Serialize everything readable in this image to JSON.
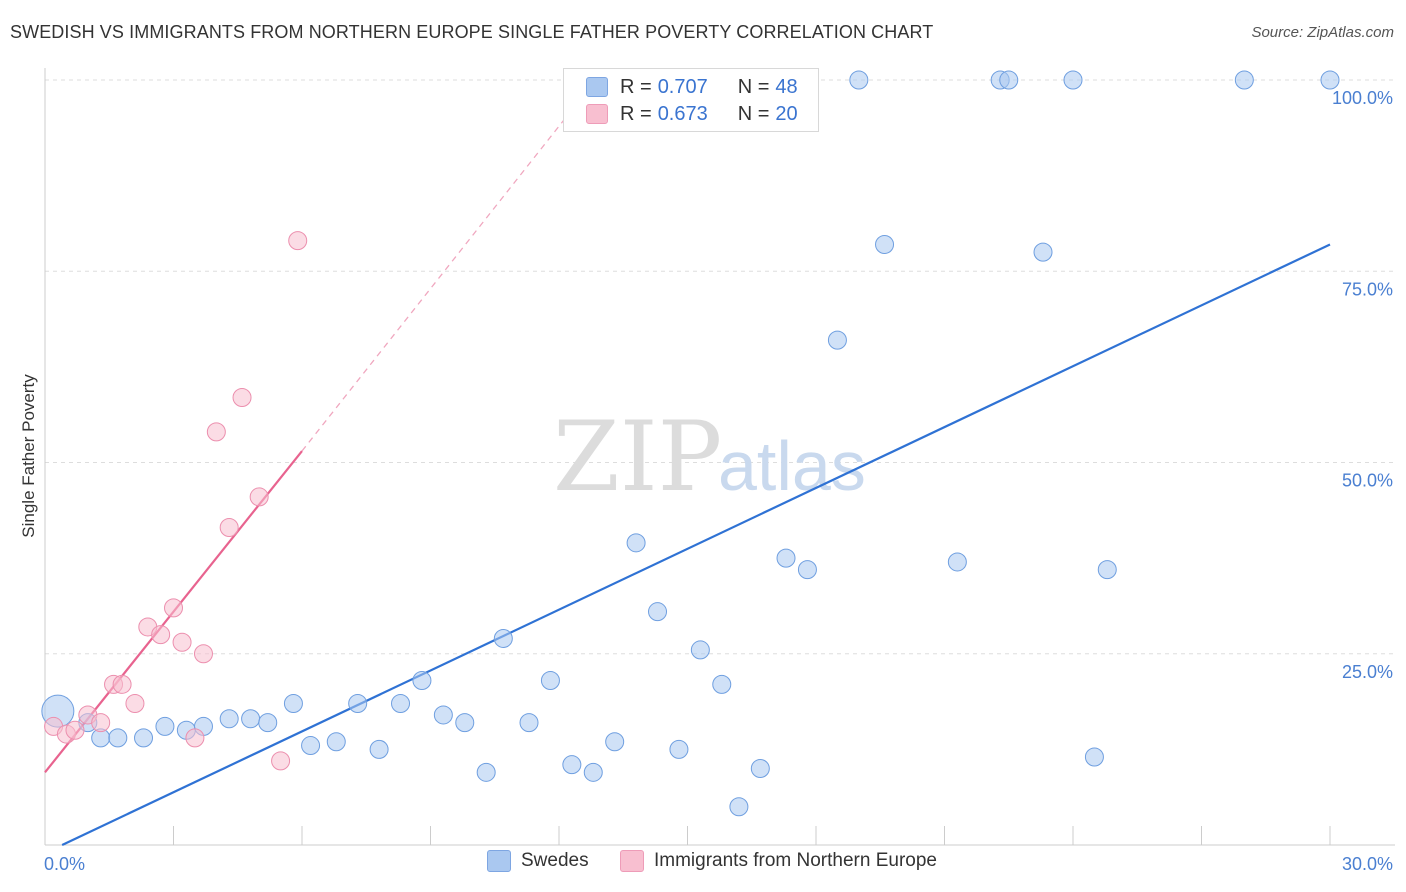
{
  "title": "SWEDISH VS IMMIGRANTS FROM NORTHERN EUROPE SINGLE FATHER POVERTY CORRELATION CHART",
  "source": "Source: ZipAtlas.com",
  "watermark": {
    "zip": "ZIP",
    "atlas": "atlas"
  },
  "legend_top": [
    {
      "r_label": "R = ",
      "r_value": "0.707",
      "n_label": "N = ",
      "n_value": "48",
      "color": "#aac8f0"
    },
    {
      "r_label": "R = ",
      "r_value": "0.673",
      "n_label": "N = ",
      "n_value": "20",
      "color": "#f8bfd0"
    }
  ],
  "chart_data": {
    "type": "scatter",
    "title": "SWEDISH VS IMMIGRANTS FROM NORTHERN EUROPE SINGLE FATHER POVERTY CORRELATION CHART",
    "xlabel": "",
    "ylabel": "Single Father Poverty",
    "xlim": [
      0,
      30
    ],
    "ylim": [
      0,
      100
    ],
    "x_tick_labels": {
      "min": "0.0%",
      "max": "30.0%"
    },
    "y_tick_labels": [
      "25.0%",
      "50.0%",
      "75.0%",
      "100.0%"
    ],
    "y_ticks": [
      25,
      50,
      75,
      100
    ],
    "grid": true,
    "legend_position": "bottom",
    "series": [
      {
        "name": "Swedes",
        "color": "#aac8f0",
        "stroke": "#6f9fe0",
        "trend": {
          "x": [
            0.4,
            30
          ],
          "y": [
            0,
            78.5
          ],
          "color": "#2f72d4"
        },
        "points": [
          [
            0.3,
            17.5
          ],
          [
            1.0,
            16.0
          ],
          [
            1.3,
            14.0
          ],
          [
            1.7,
            14.0
          ],
          [
            2.3,
            14.0
          ],
          [
            2.8,
            15.5
          ],
          [
            3.3,
            15.0
          ],
          [
            3.7,
            15.5
          ],
          [
            4.3,
            16.5
          ],
          [
            4.8,
            16.5
          ],
          [
            5.2,
            16.0
          ],
          [
            5.8,
            18.5
          ],
          [
            6.2,
            13.0
          ],
          [
            6.8,
            13.5
          ],
          [
            7.3,
            18.5
          ],
          [
            7.8,
            12.5
          ],
          [
            8.3,
            18.5
          ],
          [
            8.8,
            21.5
          ],
          [
            9.3,
            17.0
          ],
          [
            9.8,
            16.0
          ],
          [
            10.3,
            9.5
          ],
          [
            10.7,
            27.0
          ],
          [
            11.3,
            16.0
          ],
          [
            11.8,
            21.5
          ],
          [
            12.3,
            10.5
          ],
          [
            12.8,
            9.5
          ],
          [
            13.3,
            13.5
          ],
          [
            13.8,
            39.5
          ],
          [
            14.3,
            30.5
          ],
          [
            14.8,
            12.5
          ],
          [
            15.3,
            25.5
          ],
          [
            15.8,
            21.0
          ],
          [
            16.2,
            5.0
          ],
          [
            16.7,
            10.0
          ],
          [
            17.3,
            37.5
          ],
          [
            17.8,
            36.0
          ],
          [
            18.5,
            66.0
          ],
          [
            19.0,
            100.0
          ],
          [
            19.6,
            78.5
          ],
          [
            21.3,
            37.0
          ],
          [
            22.3,
            100.0
          ],
          [
            22.5,
            100.0
          ],
          [
            23.3,
            77.5
          ],
          [
            24.0,
            100.0
          ],
          [
            24.5,
            11.5
          ],
          [
            24.8,
            36.0
          ],
          [
            28.0,
            100.0
          ],
          [
            30.0,
            100.0
          ]
        ]
      },
      {
        "name": "Immigrants from Northern Europe",
        "color": "#f8bfd0",
        "stroke": "#ec8fae",
        "trend": {
          "x": [
            0,
            6
          ],
          "y": [
            9.5,
            51.5
          ],
          "color": "#e8638f"
        },
        "trend_dashed": {
          "x": [
            6,
            12.5
          ],
          "y": [
            51.5,
            97.5
          ],
          "color": "#f0a7bf"
        },
        "points": [
          [
            0.2,
            15.5
          ],
          [
            0.5,
            14.5
          ],
          [
            0.7,
            15.0
          ],
          [
            1.0,
            17.0
          ],
          [
            1.3,
            16.0
          ],
          [
            1.6,
            21.0
          ],
          [
            1.8,
            21.0
          ],
          [
            2.1,
            18.5
          ],
          [
            2.4,
            28.5
          ],
          [
            2.7,
            27.5
          ],
          [
            3.0,
            31.0
          ],
          [
            3.2,
            26.5
          ],
          [
            3.5,
            14.0
          ],
          [
            3.7,
            25.0
          ],
          [
            4.0,
            54.0
          ],
          [
            4.3,
            41.5
          ],
          [
            4.6,
            58.5
          ],
          [
            5.0,
            45.5
          ],
          [
            5.5,
            11.0
          ],
          [
            5.9,
            79.0
          ]
        ]
      }
    ]
  },
  "legend_bottom": [
    {
      "label": "Swedes",
      "color": "#aac8f0"
    },
    {
      "label": "Immigrants from Northern Europe",
      "color": "#f8bfd0"
    }
  ]
}
